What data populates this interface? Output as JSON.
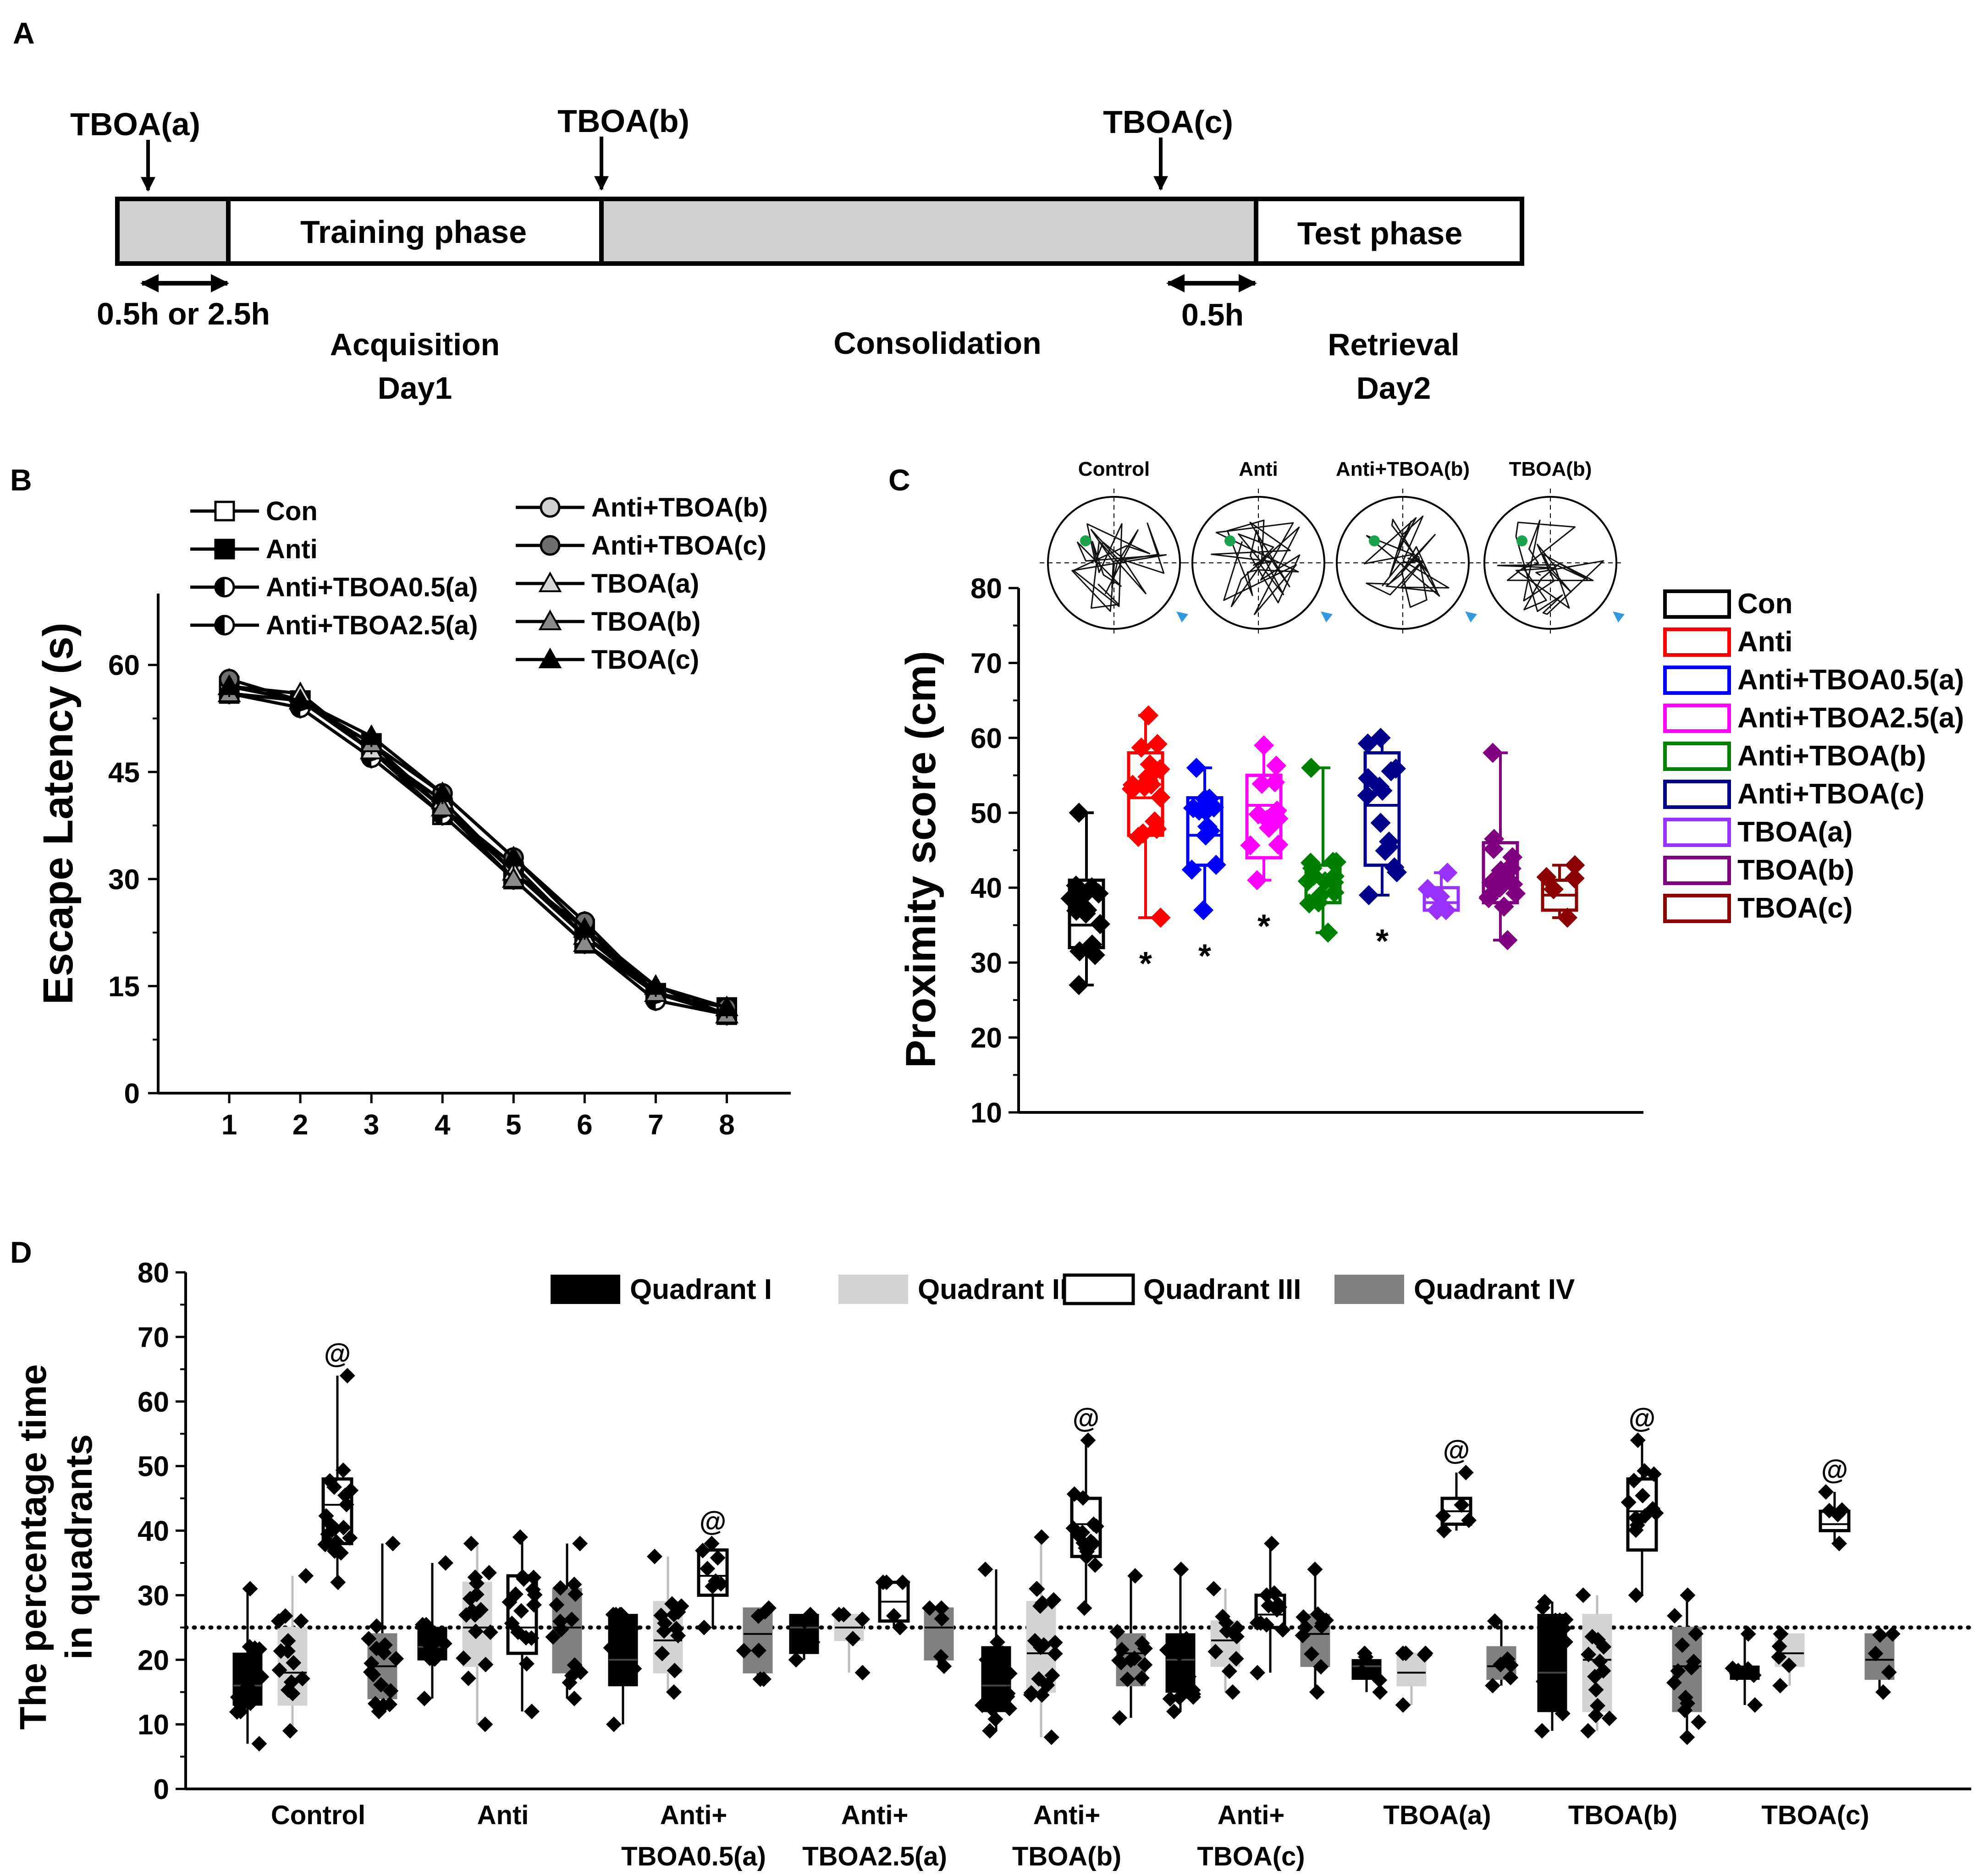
{
  "panel_labels": [
    "A",
    "B",
    "C",
    "D"
  ],
  "timeline": {
    "injections": [
      "TBOA(a)",
      "TBOA(b)",
      "TBOA(c)"
    ],
    "phases": [
      "Training phase",
      "Test phase"
    ],
    "intervals": [
      "0.5h or 2.5h",
      "0.5h"
    ],
    "stages": [
      {
        "name": "Acquisition",
        "day": "Day1"
      },
      {
        "name": "Consolidation",
        "day": ""
      },
      {
        "name": "Retrieval",
        "day": "Day2"
      }
    ]
  },
  "chart_data": [
    {
      "id": "B",
      "type": "line",
      "title": "",
      "xlabel": "",
      "ylabel": "Escape Latency (s)",
      "x": [
        1,
        2,
        3,
        4,
        5,
        6,
        7,
        8
      ],
      "xlim": [
        0,
        8.9
      ],
      "ylim": [
        0,
        70
      ],
      "yticks": [
        0,
        15,
        30,
        45,
        60
      ],
      "legend": [
        "Con",
        "Anti",
        "Anti+TBOA0.5(a)",
        "Anti+TBOA2.5(a)",
        "Anti+TBOA(b)",
        "Anti+TBOA(c)",
        "TBOA(a)",
        "TBOA(b)",
        "TBOA(c)"
      ],
      "series": [
        {
          "name": "Con",
          "marker": "square-open",
          "values": [
            56,
            55,
            48,
            39,
            30,
            21,
            14,
            11
          ]
        },
        {
          "name": "Anti",
          "marker": "square-filled",
          "values": [
            57,
            55,
            49,
            40,
            31,
            23,
            14,
            12
          ]
        },
        {
          "name": "Anti+TBOA0.5(a)",
          "marker": "circle-half",
          "values": [
            56,
            55,
            48,
            41,
            31,
            22,
            14,
            11
          ]
        },
        {
          "name": "Anti+TBOA2.5(a)",
          "marker": "circle-half",
          "values": [
            56,
            54,
            47,
            39,
            30,
            21,
            13,
            11
          ]
        },
        {
          "name": "Anti+TBOA(b)",
          "marker": "circle-light",
          "values": [
            57,
            55,
            48,
            40,
            32,
            22,
            14,
            12
          ]
        },
        {
          "name": "Anti+TBOA(c)",
          "marker": "circle-dark",
          "values": [
            58,
            55,
            49,
            42,
            33,
            24,
            14,
            12
          ]
        },
        {
          "name": "TBOA(a)",
          "marker": "triangle-light",
          "values": [
            57,
            56,
            48,
            41,
            31,
            22,
            15,
            11
          ]
        },
        {
          "name": "TBOA(b)",
          "marker": "triangle-gray",
          "values": [
            56,
            55,
            49,
            40,
            30,
            21,
            14,
            11
          ]
        },
        {
          "name": "TBOA(c)",
          "marker": "triangle-black",
          "values": [
            57,
            55,
            50,
            42,
            33,
            23,
            15,
            12
          ]
        }
      ]
    },
    {
      "id": "C",
      "type": "box",
      "ylabel": "Proximity score (cm)",
      "ylim": [
        10,
        80
      ],
      "yticks": [
        10,
        20,
        30,
        40,
        50,
        60,
        70,
        80
      ],
      "maze_titles": [
        "Control",
        "Anti",
        "Anti+TBOA(b)",
        "TBOA(b)"
      ],
      "significance_marker": "*",
      "groups": [
        {
          "name": "Con",
          "color": "#000000",
          "q1": 32,
          "median": 35,
          "q3": 41,
          "min": 27,
          "max": 50,
          "sig": false
        },
        {
          "name": "Anti",
          "color": "#ff0000",
          "q1": 47,
          "median": 52,
          "q3": 58,
          "min": 36,
          "max": 63,
          "sig": true
        },
        {
          "name": "Anti+TBOA0.5(a)",
          "color": "#0000ff",
          "q1": 43,
          "median": 47,
          "q3": 52,
          "min": 37,
          "max": 56,
          "sig": true
        },
        {
          "name": "Anti+TBOA2.5(a)",
          "color": "#ff00ff",
          "q1": 44,
          "median": 51,
          "q3": 55,
          "min": 41,
          "max": 59,
          "sig": true
        },
        {
          "name": "Anti+TBOA(b)",
          "color": "#008000",
          "q1": 38,
          "median": 41,
          "q3": 43,
          "min": 34,
          "max": 56,
          "sig": false
        },
        {
          "name": "Anti+TBOA(c)",
          "color": "#00008b",
          "q1": 43,
          "median": 51,
          "q3": 58,
          "min": 39,
          "max": 60,
          "sig": true
        },
        {
          "name": "TBOA(a)",
          "color": "#9932ff",
          "q1": 37,
          "median": 38,
          "q3": 40,
          "min": 37,
          "max": 42,
          "sig": false
        },
        {
          "name": "TBOA(b)",
          "color": "#800080",
          "q1": 38,
          "median": 41,
          "q3": 46,
          "min": 33,
          "max": 58,
          "sig": false
        },
        {
          "name": "TBOA(c)",
          "color": "#8b0000",
          "q1": 37,
          "median": 39,
          "q3": 41,
          "min": 36,
          "max": 43,
          "sig": false
        }
      ]
    },
    {
      "id": "D",
      "type": "box",
      "ylabel_lines": [
        "The percentage time",
        "in quadrants"
      ],
      "ylim": [
        0,
        80
      ],
      "yticks": [
        0,
        10,
        20,
        30,
        40,
        50,
        60,
        70,
        80
      ],
      "reference_line": 25,
      "legend": [
        "Quadrant I",
        "Quadrant II",
        "Quadrant III",
        "Quadrant IV"
      ],
      "quadrant_colors": [
        "#000000",
        "#d3d3d3",
        "#ffffff",
        "#808080"
      ],
      "significance_marker": "@",
      "groups": [
        {
          "label_lines": [
            "Control",
            ""
          ],
          "quadrants": [
            {
              "q1": 13,
              "median": 16,
              "q3": 21,
              "min": 7,
              "max": 31
            },
            {
              "q1": 13,
              "median": 18,
              "q3": 25,
              "min": 9,
              "max": 33
            },
            {
              "q1": 38,
              "median": 44,
              "q3": 48,
              "min": 32,
              "max": 64
            },
            {
              "q1": 14,
              "median": 19,
              "q3": 24,
              "min": 12,
              "max": 38
            }
          ],
          "sig_quadrant": 3
        },
        {
          "label_lines": [
            "Anti",
            ""
          ],
          "quadrants": [
            {
              "q1": 20,
              "median": 22,
              "q3": 25,
              "min": 14,
              "max": 35
            },
            {
              "q1": 19,
              "median": 25,
              "q3": 32,
              "min": 10,
              "max": 38
            },
            {
              "q1": 21,
              "median": 25,
              "q3": 33,
              "min": 12,
              "max": 39
            },
            {
              "q1": 18,
              "median": 25,
              "q3": 31,
              "min": 14,
              "max": 38
            }
          ],
          "sig_quadrant": null
        },
        {
          "label_lines": [
            "Anti+",
            "TBOA0.5(a)"
          ],
          "quadrants": [
            {
              "q1": 16,
              "median": 20,
              "q3": 27,
              "min": 10,
              "max": 27
            },
            {
              "q1": 18,
              "median": 23,
              "q3": 29,
              "min": 15,
              "max": 36
            },
            {
              "q1": 30,
              "median": 33,
              "q3": 37,
              "min": 25,
              "max": 38
            },
            {
              "q1": 18,
              "median": 24,
              "q3": 28,
              "min": 17,
              "max": 28
            }
          ],
          "sig_quadrant": 3
        },
        {
          "label_lines": [
            "Anti+",
            "TBOA2.5(a)"
          ],
          "quadrants": [
            {
              "q1": 21,
              "median": 25,
              "q3": 27,
              "min": 20,
              "max": 27
            },
            {
              "q1": 23,
              "median": 25,
              "q3": 27,
              "min": 18,
              "max": 27
            },
            {
              "q1": 26,
              "median": 29,
              "q3": 32,
              "min": 25,
              "max": 32
            },
            {
              "q1": 20,
              "median": 25,
              "q3": 28,
              "min": 19,
              "max": 28
            }
          ],
          "sig_quadrant": null
        },
        {
          "label_lines": [
            "Anti+",
            "TBOA(b)"
          ],
          "quadrants": [
            {
              "q1": 12,
              "median": 16,
              "q3": 22,
              "min": 9,
              "max": 34
            },
            {
              "q1": 15,
              "median": 21,
              "q3": 29,
              "min": 8,
              "max": 39
            },
            {
              "q1": 36,
              "median": 41,
              "q3": 45,
              "min": 28,
              "max": 54
            },
            {
              "q1": 16,
              "median": 21,
              "q3": 24,
              "min": 11,
              "max": 33
            }
          ],
          "sig_quadrant": 3
        },
        {
          "label_lines": [
            "Anti+",
            "TBOA(c)"
          ],
          "quadrants": [
            {
              "q1": 15,
              "median": 20,
              "q3": 24,
              "min": 12,
              "max": 34
            },
            {
              "q1": 19,
              "median": 23,
              "q3": 26,
              "min": 15,
              "max": 31
            },
            {
              "q1": 25,
              "median": 27,
              "q3": 30,
              "min": 18,
              "max": 38
            },
            {
              "q1": 19,
              "median": 24,
              "q3": 27,
              "min": 15,
              "max": 34
            }
          ],
          "sig_quadrant": null
        },
        {
          "label_lines": [
            "TBOA(a)",
            ""
          ],
          "quadrants": [
            {
              "q1": 17,
              "median": 19,
              "q3": 20,
              "min": 15,
              "max": 21
            },
            {
              "q1": 16,
              "median": 18,
              "q3": 21,
              "min": 13,
              "max": 21
            },
            {
              "q1": 41,
              "median": 43,
              "q3": 45,
              "min": 40,
              "max": 49
            },
            {
              "q1": 17,
              "median": 19,
              "q3": 22,
              "min": 16,
              "max": 26
            }
          ],
          "sig_quadrant": 3
        },
        {
          "label_lines": [
            "TBOA(b)",
            ""
          ],
          "quadrants": [
            {
              "q1": 12,
              "median": 18,
              "q3": 27,
              "min": 9,
              "max": 29
            },
            {
              "q1": 12,
              "median": 20,
              "q3": 27,
              "min": 9,
              "max": 30
            },
            {
              "q1": 37,
              "median": 43,
              "q3": 48,
              "min": 30,
              "max": 54
            },
            {
              "q1": 12,
              "median": 19,
              "q3": 25,
              "min": 8,
              "max": 30
            }
          ],
          "sig_quadrant": 3
        },
        {
          "label_lines": [
            "TBOA(c)",
            ""
          ],
          "quadrants": [
            {
              "q1": 17,
              "median": 18,
              "q3": 19,
              "min": 13,
              "max": 24
            },
            {
              "q1": 19,
              "median": 21,
              "q3": 24,
              "min": 16,
              "max": 24
            },
            {
              "q1": 40,
              "median": 41,
              "q3": 43,
              "min": 38,
              "max": 46
            },
            {
              "q1": 17,
              "median": 20,
              "q3": 24,
              "min": 15,
              "max": 24
            }
          ],
          "sig_quadrant": 3
        }
      ]
    }
  ]
}
